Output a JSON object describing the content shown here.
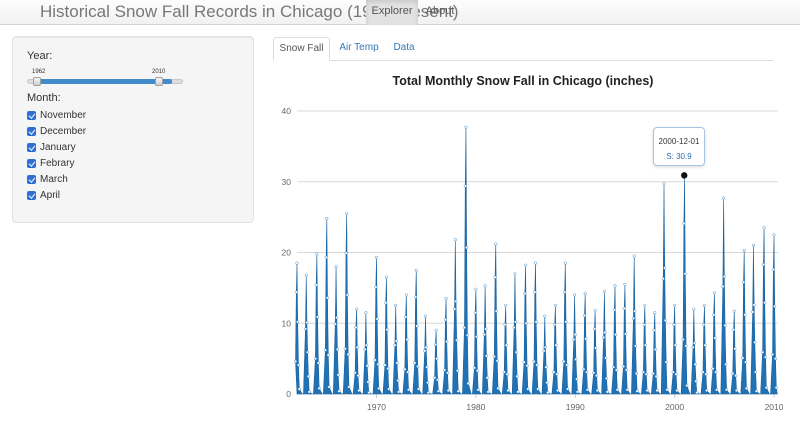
{
  "app": {
    "title": "Historical Snow Fall Records in Chicago (1958-present)",
    "nav": [
      {
        "label": "Explorer",
        "active": true
      },
      {
        "label": "About",
        "active": false
      }
    ]
  },
  "sidebar": {
    "year_label": "Year:",
    "year_slider": {
      "from": "1962",
      "to": "2010"
    },
    "month_label": "Month:",
    "months": [
      {
        "label": "November",
        "checked": true
      },
      {
        "label": "December",
        "checked": true
      },
      {
        "label": "January",
        "checked": true
      },
      {
        "label": "Febrary",
        "checked": true
      },
      {
        "label": "March",
        "checked": true
      },
      {
        "label": "April",
        "checked": true
      }
    ]
  },
  "tabs": [
    {
      "label": "Snow Fall",
      "active": true
    },
    {
      "label": "Air Temp",
      "active": false
    },
    {
      "label": "Data",
      "active": false
    }
  ],
  "chart_data": {
    "type": "area",
    "title": "Total Monthly Snow Fall in Chicago (inches)",
    "xlabel": "",
    "ylabel": "",
    "xlim": [
      1962,
      2010.4
    ],
    "ylim": [
      0,
      40
    ],
    "x_ticks": [
      1970,
      1980,
      1990,
      2000,
      2010
    ],
    "y_ticks": [
      0,
      10,
      20,
      30,
      40
    ],
    "grid": true,
    "color": "#2072b5",
    "months_per_season": 6,
    "season_peaks": [
      [
        1962,
        18.5
      ],
      [
        1963,
        16.8
      ],
      [
        1964,
        19.8
      ],
      [
        1965,
        24.8
      ],
      [
        1966,
        18.0
      ],
      [
        1967,
        25.5
      ],
      [
        1968,
        12.0
      ],
      [
        1969,
        11.5
      ],
      [
        1970,
        19.3
      ],
      [
        1971,
        16.5
      ],
      [
        1972,
        12.5
      ],
      [
        1973,
        14.0
      ],
      [
        1974,
        17.5
      ],
      [
        1975,
        11.0
      ],
      [
        1976,
        9.0
      ],
      [
        1977,
        13.5
      ],
      [
        1978,
        21.8
      ],
      [
        1979,
        37.7
      ],
      [
        1980,
        14.8
      ],
      [
        1981,
        15.3
      ],
      [
        1982,
        21.2
      ],
      [
        1983,
        12.5
      ],
      [
        1984,
        17.0
      ],
      [
        1985,
        18.2
      ],
      [
        1986,
        18.5
      ],
      [
        1987,
        11.0
      ],
      [
        1988,
        12.5
      ],
      [
        1989,
        18.5
      ],
      [
        1990,
        14.0
      ],
      [
        1991,
        14.2
      ],
      [
        1992,
        11.8
      ],
      [
        1993,
        14.5
      ],
      [
        1994,
        15.3
      ],
      [
        1995,
        15.5
      ],
      [
        1996,
        19.5
      ],
      [
        1997,
        12.5
      ],
      [
        1998,
        11.5
      ],
      [
        1999,
        29.7
      ],
      [
        2000,
        12.5
      ],
      [
        2001,
        30.9
      ],
      [
        2002,
        12.0
      ],
      [
        2003,
        12.5
      ],
      [
        2004,
        14.3
      ],
      [
        2005,
        27.7
      ],
      [
        2006,
        11.7
      ],
      [
        2007,
        20.3
      ],
      [
        2008,
        21.0
      ],
      [
        2009,
        23.5
      ],
      [
        2010,
        22.5
      ]
    ],
    "tooltip": {
      "date": "2000-12-01",
      "series": "S",
      "value": 30.9,
      "label": "S: 30.9"
    }
  }
}
